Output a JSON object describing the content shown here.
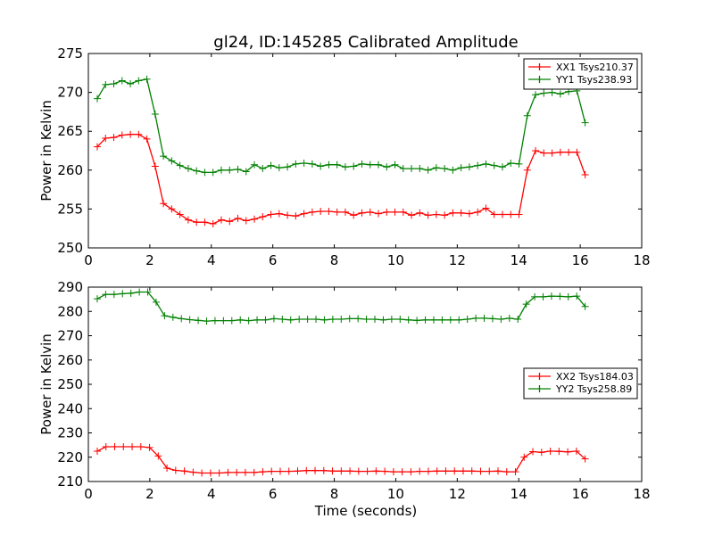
{
  "chart_data": [
    {
      "type": "line",
      "title": "gl24, ID:145285 Calibrated Amplitude",
      "xlabel": "",
      "ylabel": "Power in Kelvin",
      "xlim": [
        0,
        18
      ],
      "ylim": [
        250,
        275
      ],
      "xticks": [
        0,
        2,
        4,
        6,
        8,
        10,
        12,
        14,
        16,
        18
      ],
      "yticks": [
        250,
        255,
        260,
        265,
        270,
        275
      ],
      "x_start": 0.29,
      "x_end": 16.16,
      "legend_position": "top-right",
      "series": [
        {
          "name": "XX1 Tsys210.37",
          "color": "#ff0000",
          "values": [
            263.0,
            264.1,
            264.2,
            264.5,
            264.6,
            264.6,
            264.0,
            260.5,
            255.7,
            255.0,
            254.3,
            253.6,
            253.3,
            253.3,
            253.1,
            253.6,
            253.4,
            253.8,
            253.5,
            253.7,
            254.0,
            254.3,
            254.4,
            254.2,
            254.1,
            254.4,
            254.6,
            254.7,
            254.7,
            254.6,
            254.6,
            254.2,
            254.5,
            254.6,
            254.4,
            254.6,
            254.6,
            254.6,
            254.2,
            254.5,
            254.2,
            254.3,
            254.2,
            254.5,
            254.5,
            254.4,
            254.6,
            255.1,
            254.3,
            254.3,
            254.3,
            254.3,
            260.0,
            262.5,
            262.2,
            262.2,
            262.3,
            262.3,
            262.3,
            259.4
          ]
        },
        {
          "name": "YY1 Tsys238.93",
          "color": "#008000",
          "values": [
            269.2,
            271.0,
            271.1,
            271.5,
            271.1,
            271.5,
            271.7,
            267.2,
            261.8,
            261.2,
            260.6,
            260.2,
            259.9,
            259.7,
            259.7,
            260.0,
            260.0,
            260.1,
            259.8,
            260.7,
            260.2,
            260.6,
            260.3,
            260.4,
            260.8,
            260.9,
            260.8,
            260.5,
            260.7,
            260.7,
            260.4,
            260.5,
            260.8,
            260.7,
            260.7,
            260.4,
            260.7,
            260.2,
            260.2,
            260.2,
            260.0,
            260.3,
            260.2,
            260.0,
            260.3,
            260.4,
            260.6,
            260.8,
            260.6,
            260.4,
            260.9,
            260.8,
            267.0,
            269.7,
            269.9,
            270.0,
            269.8,
            270.1,
            270.2,
            266.1
          ]
        }
      ]
    },
    {
      "type": "line",
      "title": "",
      "xlabel": "Time (seconds)",
      "ylabel": "Power in Kelvin",
      "xlim": [
        0,
        18
      ],
      "ylim": [
        210,
        290
      ],
      "xticks": [
        0,
        2,
        4,
        6,
        8,
        10,
        12,
        14,
        16,
        18
      ],
      "yticks": [
        210,
        220,
        230,
        240,
        250,
        260,
        270,
        280,
        290
      ],
      "x_start": 0.29,
      "x_end": 16.16,
      "legend_position": "center-right",
      "series": [
        {
          "name": "XX2 Tsys184.03",
          "color": "#ff0000",
          "values": [
            222.5,
            224.3,
            224.3,
            224.3,
            224.3,
            224.3,
            224.0,
            220.5,
            215.5,
            214.6,
            214.3,
            213.8,
            213.5,
            213.5,
            213.5,
            213.7,
            213.7,
            213.7,
            213.7,
            214.0,
            214.2,
            214.2,
            214.2,
            214.3,
            214.5,
            214.5,
            214.5,
            214.3,
            214.3,
            214.3,
            214.2,
            214.2,
            214.3,
            214.2,
            214.0,
            214.0,
            214.0,
            214.2,
            214.2,
            214.3,
            214.3,
            214.3,
            214.3,
            214.3,
            214.2,
            214.2,
            214.3,
            214.0,
            214.0,
            220.0,
            222.3,
            222.0,
            222.5,
            222.4,
            222.2,
            222.5,
            219.3
          ]
        },
        {
          "name": "YY2 Tsys258.89",
          "color": "#008000",
          "values": [
            285.2,
            287.0,
            287.0,
            287.3,
            287.5,
            288.0,
            288.0,
            283.8,
            278.2,
            277.6,
            277.0,
            276.6,
            276.3,
            276.0,
            276.2,
            276.2,
            276.2,
            276.5,
            276.2,
            276.5,
            276.5,
            277.0,
            276.8,
            276.5,
            276.8,
            276.8,
            276.8,
            276.5,
            276.8,
            276.8,
            277.0,
            277.0,
            276.8,
            276.8,
            276.5,
            276.8,
            276.8,
            276.5,
            276.3,
            276.5,
            276.5,
            276.5,
            276.5,
            276.5,
            276.8,
            277.2,
            277.2,
            277.0,
            276.8,
            277.2,
            276.8,
            283.0,
            286.0,
            286.0,
            286.3,
            286.2,
            286.0,
            286.3,
            282.0
          ]
        }
      ]
    }
  ]
}
